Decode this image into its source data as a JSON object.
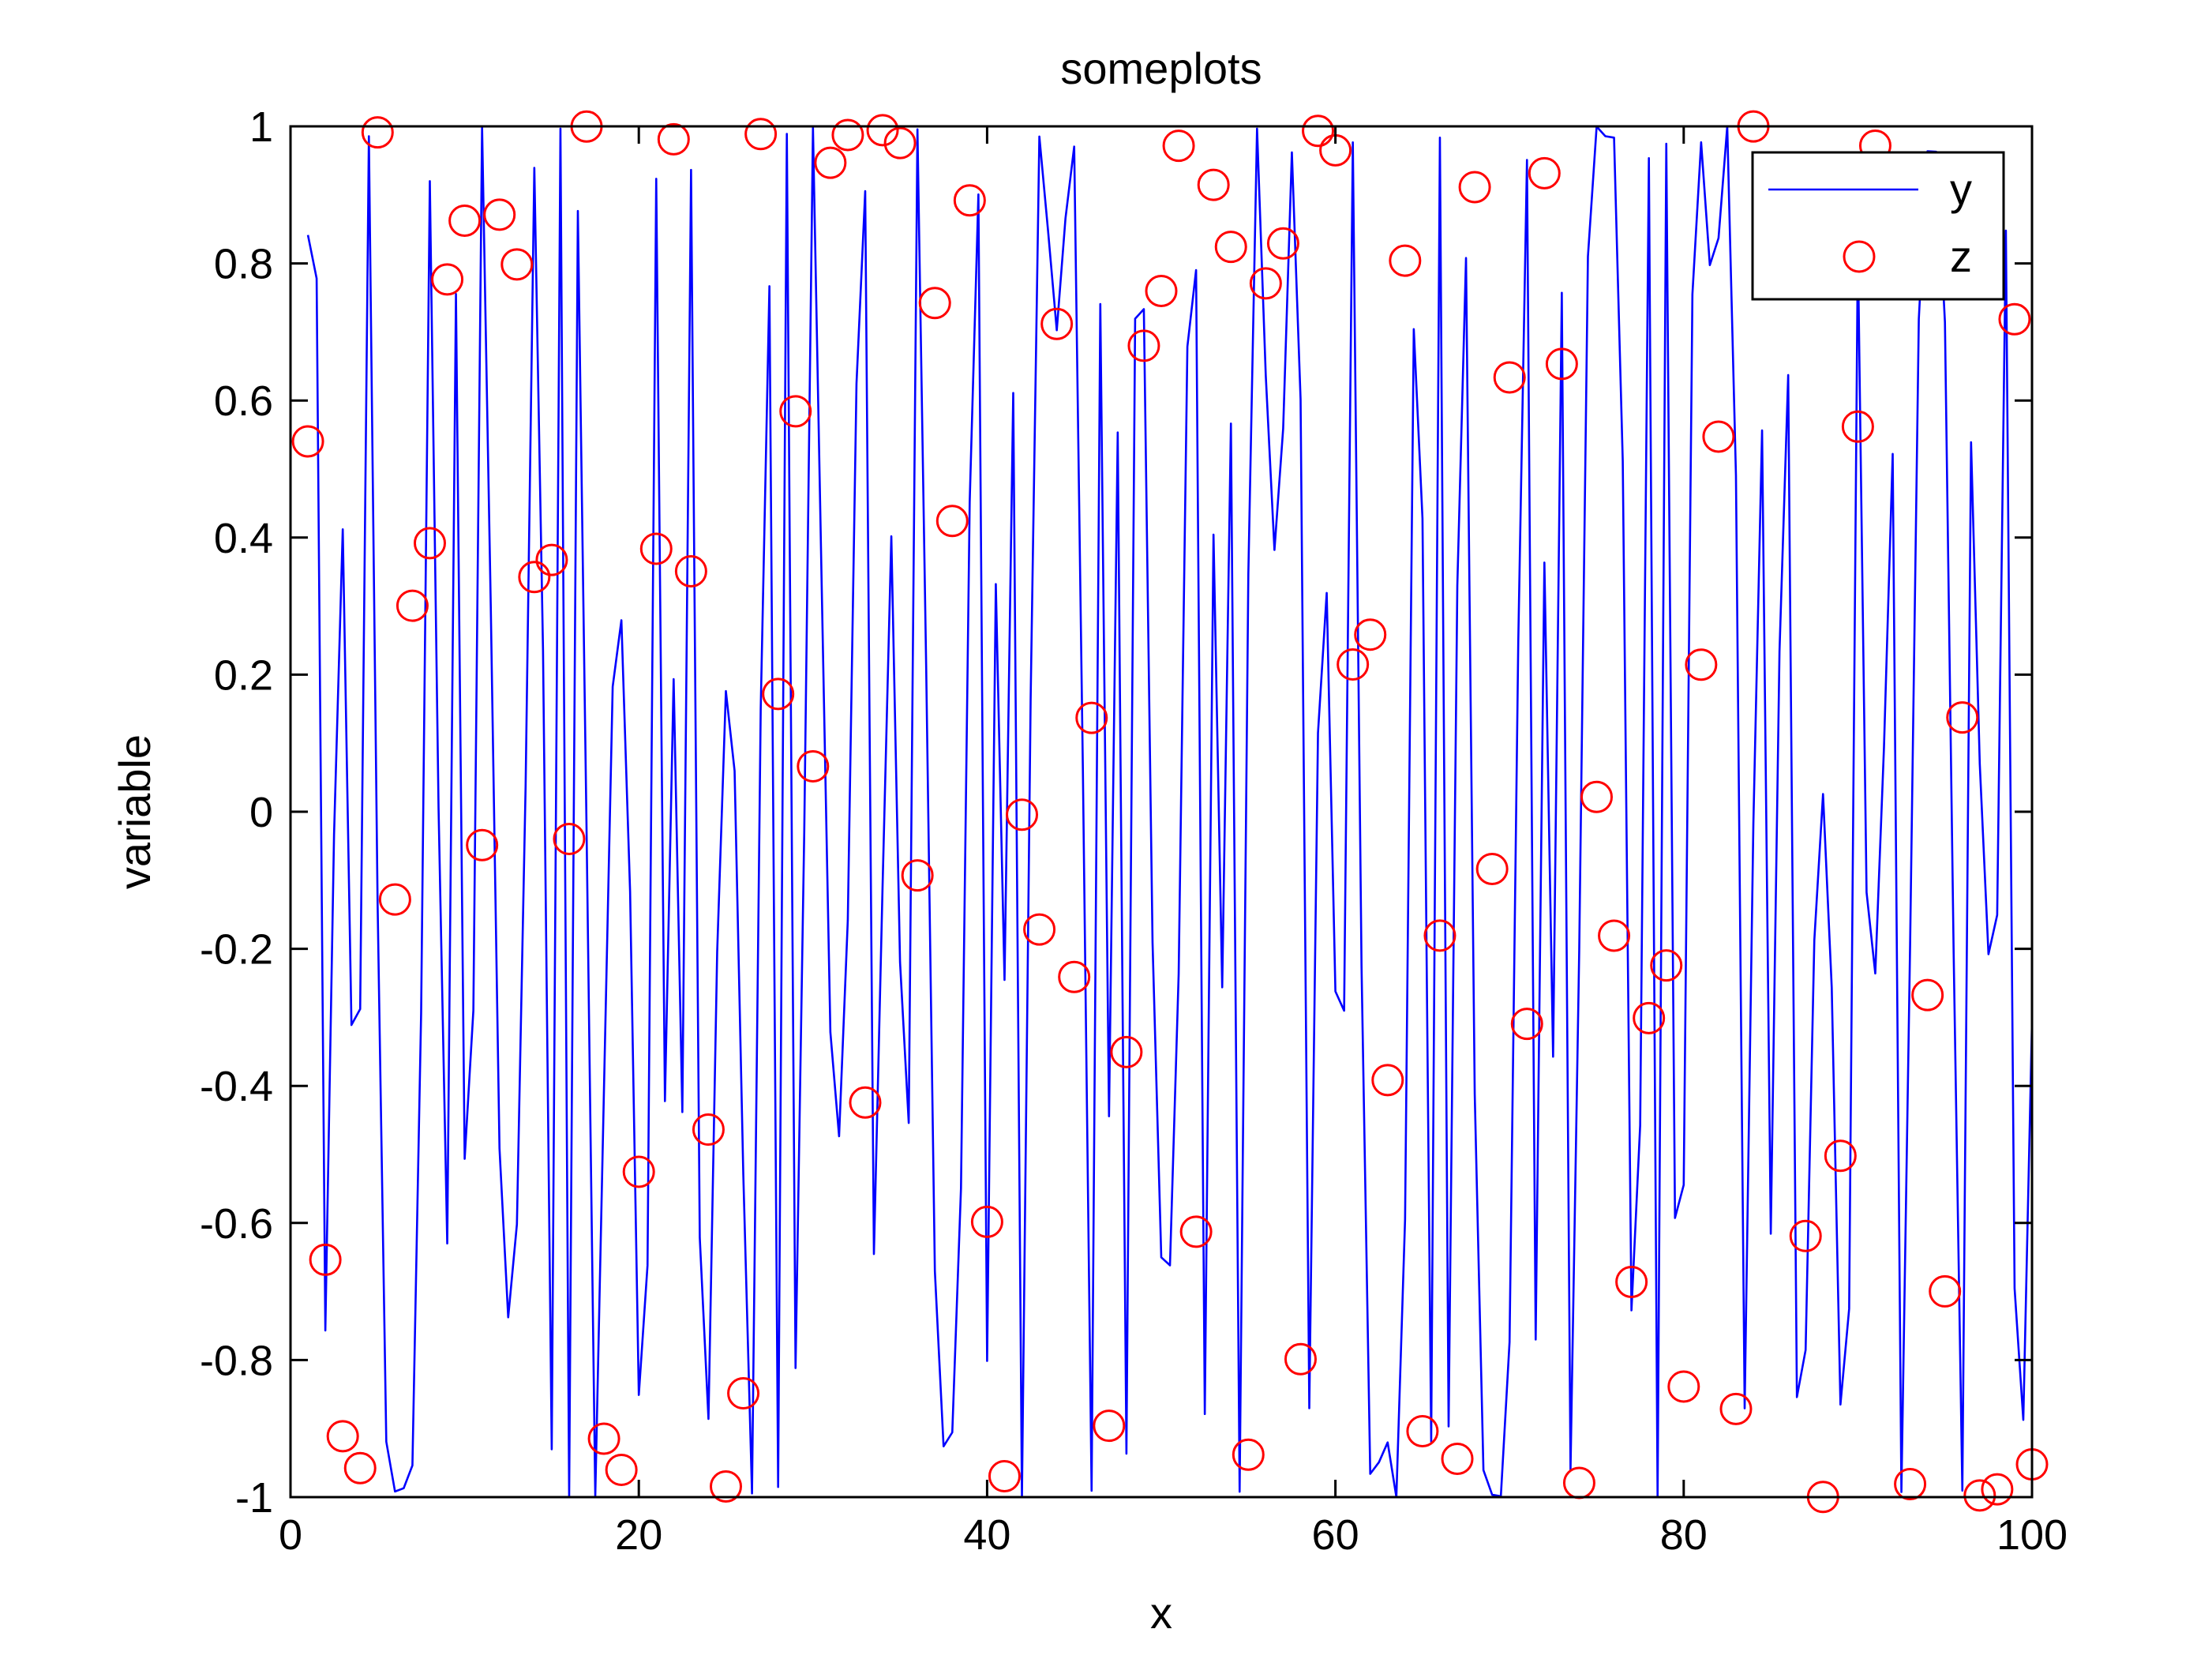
{
  "chart_data": {
    "type": "line",
    "title": "someplots",
    "xlabel": "x",
    "ylabel": "variable",
    "xlim": [
      0,
      100
    ],
    "ylim": [
      -1,
      1
    ],
    "xticks": [
      "0",
      "20",
      "40",
      "60",
      "80",
      "100"
    ],
    "yticks": [
      "-1",
      "-0.8",
      "-0.6",
      "-0.4",
      "-0.2",
      "0",
      "0.2",
      "0.4",
      "0.6",
      "0.8",
      "1"
    ],
    "grid": false,
    "legend_position": "top-right",
    "series": [
      {
        "name": "y",
        "kind": "line",
        "color": "#0000ff",
        "formula": "sin(x^2)",
        "x_start": 1,
        "x_end": 100,
        "x_step": 0.5
      },
      {
        "name": "z",
        "kind": "markers",
        "marker": "circle",
        "color": "#ff0000",
        "formula": "cos(x^2)",
        "x_start": 1,
        "x_end": 100,
        "x_step": 1
      }
    ]
  }
}
